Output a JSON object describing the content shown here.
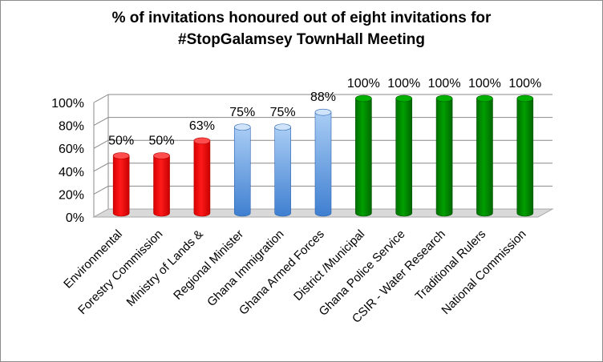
{
  "chart_data": {
    "type": "bar",
    "title_lines": [
      "% of invitations honoured out of eight invitations for",
      "#StopGalamsey TownHall Meeting"
    ],
    "categories": [
      "Environmental",
      "Forestry Commission",
      "Ministry of Lands &",
      "Regional Minister",
      "Ghana Immigration",
      "Ghana Armed Forces",
      "District /Municipal",
      "Ghana Police Service",
      "CSIR - Water Research",
      "Traditional Rulers",
      "National Commission"
    ],
    "values": [
      50,
      50,
      63,
      75,
      75,
      88,
      100,
      100,
      100,
      100,
      100
    ],
    "data_labels": [
      "50%",
      "50%",
      "63%",
      "75%",
      "75%",
      "88%",
      "100%",
      "100%",
      "100%",
      "100%",
      "100%"
    ],
    "bar_groups": [
      "red",
      "red",
      "red",
      "blue",
      "blue",
      "blue",
      "green",
      "green",
      "green",
      "green",
      "green"
    ],
    "colors": {
      "red": "#ff0000",
      "blue": "#6fa8e6",
      "green": "#008a00"
    },
    "ylim": [
      0,
      100
    ],
    "ytick_values": [
      0,
      20,
      40,
      60,
      80,
      100
    ],
    "ytick_labels": [
      "0%",
      "20%",
      "40%",
      "60%",
      "80%",
      "100%"
    ],
    "grid": true,
    "legend": "none",
    "style": "3d-cylinder"
  }
}
